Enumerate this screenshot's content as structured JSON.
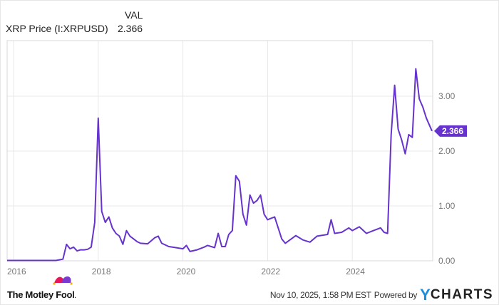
{
  "legend": {
    "column_header": "VAL",
    "series_name": "XRP Price (I:XRPUSD)",
    "series_value": "2.366"
  },
  "colors": {
    "line": "#6633cc",
    "badge": "#6633cc",
    "grid": "#e8e8e8",
    "frame": "#d9d9d9",
    "tick_text": "#777777",
    "ycharts_y": "#1a8fe0"
  },
  "footer": {
    "brand": "The Motley Fool",
    "brand_suffix": ".",
    "timestamp": "Nov 10, 2025, 1:58 PM EST",
    "powered_by": "Powered by",
    "ycharts_y": "Y",
    "ycharts_rest": "CHARTS"
  },
  "last_value_badge": "2.366",
  "chart_data": {
    "type": "line",
    "title": "XRP Price (I:XRPUSD)",
    "xlabel": "",
    "ylabel": "",
    "x_tick_labels": [
      "2016",
      "2018",
      "2020",
      "2022",
      "2024"
    ],
    "y_tick_labels": [
      "0.00",
      "1.00",
      "2.00",
      "3.00"
    ],
    "ylim": [
      0,
      3.95
    ],
    "xlim": [
      "2015-11",
      "2025-11-10"
    ],
    "grid": true,
    "legend_position": "top-left",
    "last_value": 2.366,
    "series": [
      {
        "name": "XRP Price (I:XRPUSD)",
        "x": [
          "2015-11",
          "2016-06",
          "2017-01",
          "2017-03",
          "2017-04",
          "2017-05",
          "2017-06",
          "2017-07",
          "2017-08",
          "2017-09",
          "2017-10",
          "2017-11",
          "2017-12",
          "2018-01",
          "2018-02",
          "2018-03",
          "2018-04",
          "2018-05",
          "2018-06",
          "2018-07",
          "2018-08",
          "2018-09",
          "2018-10",
          "2018-11",
          "2018-12",
          "2019-01",
          "2019-03",
          "2019-05",
          "2019-06",
          "2019-07",
          "2019-09",
          "2019-11",
          "2020-01",
          "2020-02",
          "2020-03",
          "2020-05",
          "2020-07",
          "2020-08",
          "2020-10",
          "2020-11",
          "2020-12",
          "2021-01",
          "2021-02",
          "2021-03",
          "2021-04",
          "2021-05",
          "2021-06",
          "2021-07",
          "2021-08",
          "2021-09",
          "2021-10",
          "2021-11",
          "2021-12",
          "2022-01",
          "2022-03",
          "2022-05",
          "2022-06",
          "2022-09",
          "2022-11",
          "2023-01",
          "2023-03",
          "2023-06",
          "2023-07",
          "2023-08",
          "2023-10",
          "2023-12",
          "2024-01",
          "2024-03",
          "2024-05",
          "2024-07",
          "2024-09",
          "2024-10",
          "2024-11",
          "2024-12",
          "2025-01",
          "2025-02",
          "2025-03",
          "2025-04",
          "2025-05",
          "2025-06",
          "2025-07",
          "2025-08",
          "2025-09",
          "2025-10",
          "2025-11"
        ],
        "values": [
          0.006,
          0.006,
          0.006,
          0.03,
          0.3,
          0.22,
          0.25,
          0.18,
          0.2,
          0.2,
          0.21,
          0.25,
          0.7,
          2.6,
          0.9,
          0.7,
          0.8,
          0.6,
          0.5,
          0.45,
          0.3,
          0.55,
          0.45,
          0.4,
          0.35,
          0.32,
          0.31,
          0.42,
          0.45,
          0.32,
          0.26,
          0.24,
          0.22,
          0.28,
          0.17,
          0.2,
          0.25,
          0.28,
          0.24,
          0.5,
          0.26,
          0.26,
          0.48,
          0.55,
          1.55,
          1.45,
          0.85,
          0.65,
          1.2,
          1.05,
          1.1,
          1.2,
          0.85,
          0.75,
          0.8,
          0.4,
          0.32,
          0.46,
          0.38,
          0.34,
          0.45,
          0.48,
          0.75,
          0.5,
          0.52,
          0.6,
          0.55,
          0.62,
          0.5,
          0.55,
          0.6,
          0.52,
          0.5,
          2.3,
          3.2,
          2.4,
          2.2,
          1.95,
          2.3,
          2.25,
          3.5,
          2.95,
          2.8,
          2.6,
          2.366
        ]
      }
    ]
  }
}
